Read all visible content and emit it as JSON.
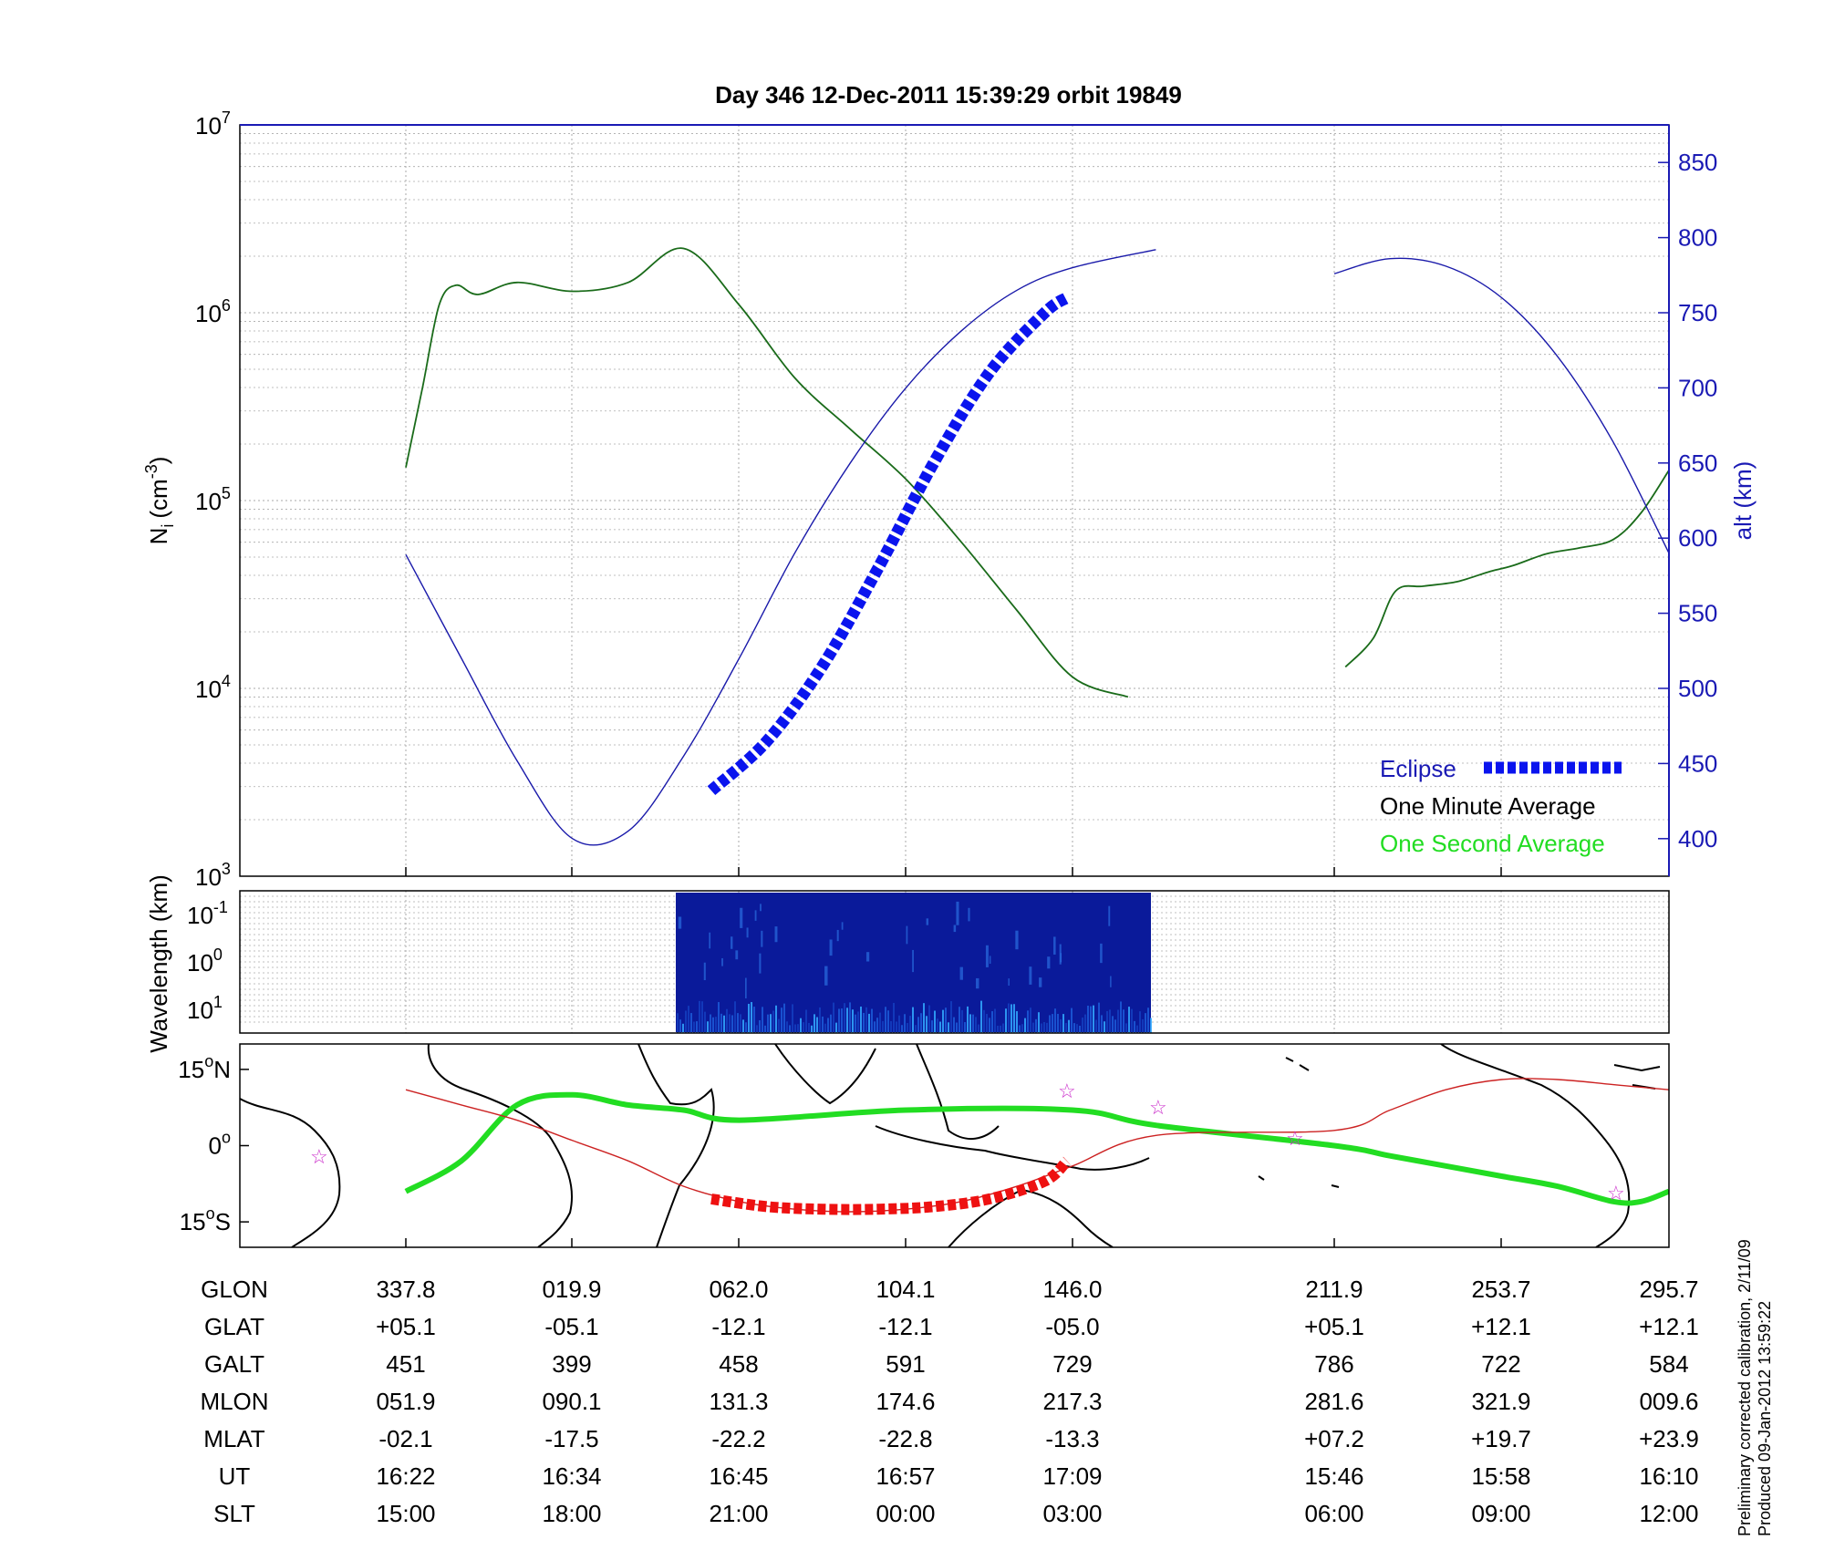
{
  "title": "Day 346  12-Dec-2011 15:39:29   orbit 19849",
  "colors": {
    "ni_line": "#1a6b1a",
    "alt_line": "#1a1aaa",
    "eclipse": "#0a14ee",
    "one_second": "#22dd22",
    "track": "#cc2222",
    "map_eclipse": "#ee1111",
    "right_axis": "#1a1ab4",
    "spectrogram_bg": "#0a1a9a",
    "stars": "#cc33cc"
  },
  "main_panel": {
    "ylabel_left": "N",
    "ylabel_left_sub": "i",
    "ylabel_left_unit": "(cm",
    "ylabel_left_exp": "-3",
    "ylabel_left_close": ")",
    "ylabel_right": "alt (km)",
    "yticks_left": [
      {
        "base": "10",
        "exp": "7",
        "value": 10000000
      },
      {
        "base": "10",
        "exp": "6",
        "value": 1000000
      },
      {
        "base": "10",
        "exp": "5",
        "value": 100000
      },
      {
        "base": "10",
        "exp": "4",
        "value": 10000
      },
      {
        "base": "10",
        "exp": "3",
        "value": 1000
      }
    ],
    "yticks_right": [
      "850",
      "800",
      "750",
      "700",
      "650",
      "600",
      "550",
      "500",
      "450",
      "400"
    ],
    "legend": {
      "eclipse": "Eclipse",
      "one_minute": "One Minute Average",
      "one_second": "One Second Average"
    }
  },
  "spectrogram_panel": {
    "ylabel": "Wavelength (km)",
    "yticks": [
      {
        "base": "10",
        "exp": "-1"
      },
      {
        "base": "10",
        "exp": "0"
      },
      {
        "base": "10",
        "exp": "1"
      }
    ]
  },
  "map_panel": {
    "yticks": [
      {
        "deg": "15",
        "sym": "o",
        "hemi": "N"
      },
      {
        "deg": "0",
        "sym": "o",
        "hemi": ""
      },
      {
        "deg": "15",
        "sym": "o",
        "hemi": "S"
      }
    ]
  },
  "ephemeris": {
    "rows": [
      {
        "label": "GLON",
        "values": [
          "337.8",
          "019.9",
          "062.0",
          "104.1",
          "146.0",
          "211.9",
          "253.7",
          "295.7"
        ]
      },
      {
        "label": "GLAT",
        "values": [
          "+05.1",
          "-05.1",
          "-12.1",
          "-12.1",
          "-05.0",
          "+05.1",
          "+12.1",
          "+12.1"
        ]
      },
      {
        "label": "GALT",
        "values": [
          "451",
          "399",
          "458",
          "591",
          "729",
          "786",
          "722",
          "584"
        ]
      },
      {
        "label": "MLON",
        "values": [
          "051.9",
          "090.1",
          "131.3",
          "174.6",
          "217.3",
          "281.6",
          "321.9",
          "009.6"
        ]
      },
      {
        "label": "MLAT",
        "values": [
          "-02.1",
          "-17.5",
          "-22.2",
          "-22.8",
          "-13.3",
          "+07.2",
          "+19.7",
          "+23.9"
        ]
      },
      {
        "label": "UT",
        "values": [
          "16:22",
          "16:34",
          "16:45",
          "16:57",
          "17:09",
          "15:46",
          "15:58",
          "16:10"
        ]
      },
      {
        "label": "SLT",
        "values": [
          "15:00",
          "18:00",
          "21:00",
          "00:00",
          "03:00",
          "06:00",
          "09:00",
          "12:00"
        ]
      }
    ]
  },
  "side_notes": [
    "Preliminary corrected calibration, 2/11/09",
    "Produced 09-Jan-2012 13:59:22"
  ],
  "chart_data": [
    {
      "type": "line",
      "title": "Day 346  12-Dec-2011 15:39:29   orbit 19849",
      "x_tick_labels_slt": [
        "15:00",
        "18:00",
        "21:00",
        "00:00",
        "03:00",
        "06:00",
        "09:00",
        "12:00"
      ],
      "y_scale": "log",
      "ylim": [
        1000,
        10000000
      ],
      "y2lim": [
        375,
        875
      ],
      "ylabel": "Ni (cm-3)",
      "y2label": "alt (km)",
      "grid": true,
      "legend_position": "bottom-right",
      "series": [
        {
          "name": "One Minute Average",
          "axis": "left",
          "segments": [
            {
              "slt": [
                15.0,
                15.3,
                15.6,
                15.9,
                16.3,
                17.0,
                18.0,
                19.0,
                20.0,
                21.0,
                22.0,
                23.0,
                0.0,
                1.0,
                2.0,
                3.0,
                4.0
              ],
              "values": [
                150000,
                400000,
                1100000,
                1400000,
                1250000,
                1450000,
                1300000,
                1450000,
                2200000,
                1100000,
                450000,
                240000,
                130000,
                60000,
                26000,
                11500,
                9000
              ]
            },
            {
              "slt": [
                6.2,
                6.7,
                7.1,
                7.6,
                8.2,
                8.8,
                9.2,
                9.8,
                10.4,
                11.0,
                11.5,
                12.0
              ],
              "values": [
                13000,
                18500,
                33000,
                35000,
                37000,
                42000,
                45000,
                52000,
                56000,
                62000,
                86000,
                145000
              ]
            }
          ]
        },
        {
          "name": "alt",
          "axis": "right",
          "segments": [
            {
              "slt": [
                15.0,
                16.0,
                17.0,
                18.0,
                19.0,
                20.0,
                21.0,
                22.0,
                23.0,
                0.0,
                1.0,
                2.0,
                3.0,
                4.5
              ],
              "values": [
                589,
                520,
                452,
                400,
                405,
                455,
                520,
                590,
                650,
                700,
                738,
                765,
                780,
                792
              ]
            },
            {
              "slt": [
                6.0,
                7.0,
                8.0,
                9.0,
                10.0,
                11.0,
                12.0
              ],
              "values": [
                776,
                786,
                781,
                760,
                721,
                664,
                590
              ]
            }
          ]
        },
        {
          "name": "Eclipse",
          "axis": "right",
          "slt": [
            20.5,
            21.5,
            22.5,
            23.5,
            0.5,
            1.5,
            2.5,
            2.9
          ],
          "values": [
            432,
            465,
            515,
            580,
            650,
            710,
            750,
            760
          ]
        }
      ]
    },
    {
      "type": "line",
      "ylim": [
        -20,
        20
      ],
      "yticks": [
        "15°N",
        "0°",
        "15°S"
      ],
      "series": [
        {
          "name": "One Second Average",
          "slt": [
            15.0,
            16.0,
            17.0,
            18.0,
            19.0,
            20.0,
            21.0,
            0.0,
            3.0,
            4.5,
            6.0,
            7.0,
            8.0,
            9.0,
            10.0,
            11.0,
            11.5,
            12.0
          ],
          "values": [
            -9,
            -3,
            8,
            10,
            8,
            7,
            5,
            7,
            7,
            4,
            0,
            -2,
            -4,
            -6,
            -8,
            -11,
            -11,
            -9
          ]
        },
        {
          "name": "track",
          "slt": [
            15.0,
            16.0,
            17.0,
            18.0,
            19.0,
            20.0,
            21.0,
            22.0,
            23.0,
            0.0,
            1.0,
            2.0,
            3.0,
            4.5,
            6.0,
            7.0,
            8.0,
            9.0,
            10.0,
            11.0,
            12.0
          ],
          "values": [
            11,
            8,
            5,
            1,
            -3,
            -8,
            -11,
            -12.5,
            -13,
            -12.5,
            -11,
            -8,
            -4,
            2,
            3,
            7,
            11,
            13,
            13,
            12,
            11
          ]
        },
        {
          "name": "Eclipse",
          "slt": [
            20.5,
            21.5,
            22.5,
            23.5,
            0.5,
            1.5,
            2.5,
            2.9
          ],
          "values": [
            -10.5,
            -12,
            -12.5,
            -12.5,
            -12,
            -10.5,
            -7,
            -3
          ]
        }
      ]
    }
  ]
}
